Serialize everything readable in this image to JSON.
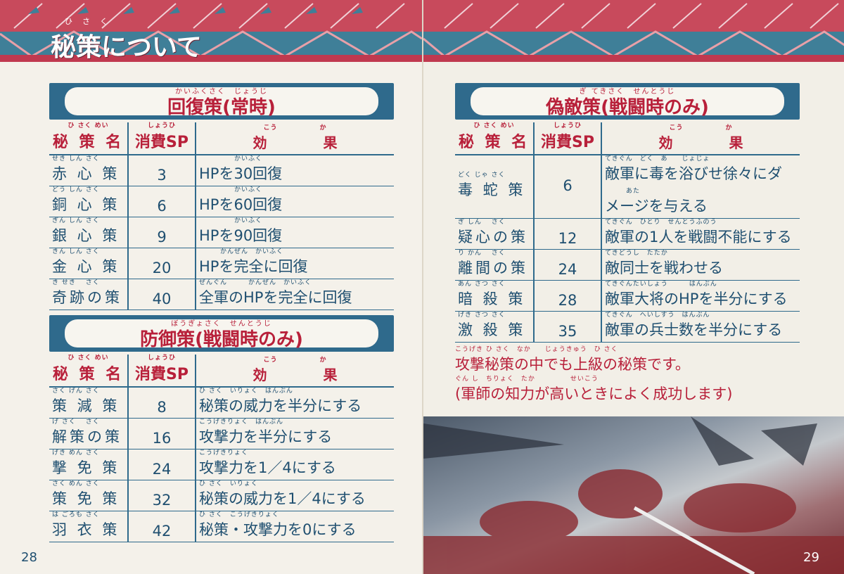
{
  "left_page": {
    "title": "秘策について",
    "title_ruby": "ひさく",
    "page_number": "28",
    "sections": [
      {
        "title": "回復策(常時)",
        "title_ruby": "かいふくさく　じょうじ",
        "headers": {
          "name": "秘 策 名",
          "name_ruby": "ひ さく めい",
          "sp": "消費SP",
          "sp_ruby": "しょうひ",
          "effect": "効　　　　果",
          "effect_ruby": "こう　　　　　　か"
        },
        "rows": [
          {
            "name": "赤 心 策",
            "name_ruby": "せき しん さく",
            "sp": "3",
            "effect": "HPを30回復",
            "effect_ruby": "　　　　　かいふく"
          },
          {
            "name": "銅 心 策",
            "name_ruby": "どう しん さく",
            "sp": "6",
            "effect": "HPを60回復",
            "effect_ruby": "　　　　　かいふく"
          },
          {
            "name": "銀 心 策",
            "name_ruby": "ぎん しん さく",
            "sp": "9",
            "effect": "HPを90回復",
            "effect_ruby": "　　　　　かいふく"
          },
          {
            "name": "金 心 策",
            "name_ruby": "きん しん さく",
            "sp": "20",
            "effect": "HPを完全に回復",
            "effect_ruby": "　　　かんぜん　かいふく"
          },
          {
            "name": "奇跡の策",
            "name_ruby": "き せき　 さく",
            "sp": "40",
            "effect": "全軍のHPを完全に回復",
            "effect_ruby": "ぜんぐん　　　かんぜん　かいふく"
          }
        ]
      },
      {
        "title": "防御策(戦闘時のみ)",
        "title_ruby": "ぼうぎょさく　せんとうじ",
        "headers": {
          "name": "秘 策 名",
          "name_ruby": "ひ さく めい",
          "sp": "消費SP",
          "sp_ruby": "しょうひ",
          "effect": "効　　　　果",
          "effect_ruby": "こう　　　　　　か"
        },
        "rows": [
          {
            "name": "策 減 策",
            "name_ruby": "さく げん さく",
            "sp": "8",
            "effect": "秘策の威力を半分にする",
            "effect_ruby": "ひ さく　いりょく　はんぶん"
          },
          {
            "name": "解策の策",
            "name_ruby": "げ さく　 さく",
            "sp": "16",
            "effect": "攻撃力を半分にする",
            "effect_ruby": "こうげきりょく　はんぶん"
          },
          {
            "name": "撃 免 策",
            "name_ruby": "げき めん さく",
            "sp": "24",
            "effect": "攻撃力を1／4にする",
            "effect_ruby": "こうげきりょく"
          },
          {
            "name": "策 免 策",
            "name_ruby": "さく めん さく",
            "sp": "32",
            "effect": "秘策の威力を1／4にする",
            "effect_ruby": "ひ さく　いりょく"
          },
          {
            "name": "羽 衣 策",
            "name_ruby": "は ごろも さく",
            "sp": "42",
            "effect": "秘策・攻撃力を0にする",
            "effect_ruby": "ひ さく　こうげきりょく"
          }
        ]
      }
    ]
  },
  "right_page": {
    "page_number": "29",
    "section": {
      "title": "偽敵策(戦闘時のみ)",
      "title_ruby": "ぎ てきさく　せんとうじ",
      "headers": {
        "name": "秘 策 名",
        "name_ruby": "ひ さく めい",
        "sp": "消費SP",
        "sp_ruby": "しょうひ",
        "effect": "効　　　　果",
        "effect_ruby": "こう　　　　　　か"
      },
      "rows": [
        {
          "name": "毒 蛇 策",
          "name_ruby": "どく じゃ さく",
          "sp": "6",
          "effect": "敵軍に毒を浴びせ徐々にダ",
          "effect_ruby": "てきぐん　どく　あ　　じょじょ",
          "effect2": "メージを与える",
          "effect2_ruby": "　　　あた"
        },
        {
          "name": "疑心の策",
          "name_ruby": "ぎ しん　 さく",
          "sp": "12",
          "effect": "敵軍の1人を戦闘不能にする",
          "effect_ruby": "てきぐん　ひとり　せんとうふのう"
        },
        {
          "name": "離間の策",
          "name_ruby": "り かん　 さく",
          "sp": "24",
          "effect": "敵同士を戦わせる",
          "effect_ruby": "てきどうし　たたか"
        },
        {
          "name": "暗 殺 策",
          "name_ruby": "あん さつ さく",
          "sp": "28",
          "effect": "敵軍大将のHPを半分にする",
          "effect_ruby": "てきぐんたいしょう　　　はんぶん"
        },
        {
          "name": "激 殺 策",
          "name_ruby": "げき さつ さく",
          "sp": "35",
          "effect": "敵軍の兵士数を半分にする",
          "effect_ruby": "てきぐん　へいしすう　はんぶん"
        }
      ]
    },
    "note_line1": "攻撃秘策の中でも上級の秘策です。",
    "note_line1_ruby": "こうげき ひ さく　なか　　じょうきゅう　ひ さく",
    "note_line2": "(軍師の知力が高いときによく成功します)",
    "note_line2_ruby": "ぐん し　ちりょく　たか　　　　　せいこう",
    "illustration": "mounted-warriors-battle-illustration"
  },
  "colors": {
    "red": "#b8203a",
    "blue": "#2f6a8c",
    "text": "#1f4f70",
    "band_red": "#c84a5c",
    "band_teal": "#3f7f98"
  }
}
